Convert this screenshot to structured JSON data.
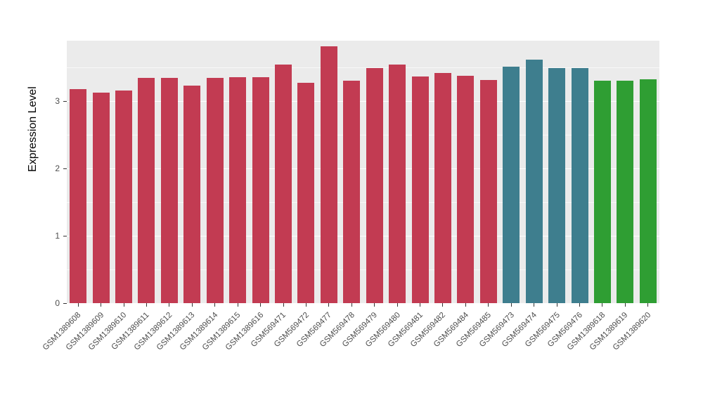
{
  "chart_data": {
    "type": "bar",
    "title": "",
    "xlabel": "",
    "ylabel": "Expression Level",
    "ylim": [
      0,
      3.9
    ],
    "yticks": [
      0,
      1,
      2,
      3
    ],
    "yminor": [
      0.5,
      1.5,
      2.5,
      3.5
    ],
    "grid": "on",
    "legend_position": "none",
    "panel_background": "#EBEBEB",
    "gridline_color": "#FFFFFF",
    "categories": [
      "GSM1389608",
      "GSM1389609",
      "GSM1389610",
      "GSM1389611",
      "GSM1389612",
      "GSM1389613",
      "GSM1389614",
      "GSM1389615",
      "GSM1389616",
      "GSM569471",
      "GSM569472",
      "GSM569477",
      "GSM569478",
      "GSM569479",
      "GSM569480",
      "GSM569481",
      "GSM569482",
      "GSM569484",
      "GSM569485",
      "GSM569473",
      "GSM569474",
      "GSM569475",
      "GSM569476",
      "GSM1389618",
      "GSM1389619",
      "GSM1389620"
    ],
    "values": [
      3.18,
      3.13,
      3.16,
      3.35,
      3.35,
      3.23,
      3.35,
      3.36,
      3.36,
      3.55,
      3.27,
      3.82,
      3.31,
      3.49,
      3.55,
      3.37,
      3.42,
      3.38,
      3.32,
      3.51,
      3.62,
      3.49,
      3.49,
      3.31,
      3.31,
      3.33
    ],
    "bar_groups": [
      "crimson",
      "crimson",
      "crimson",
      "crimson",
      "crimson",
      "crimson",
      "crimson",
      "crimson",
      "crimson",
      "crimson",
      "crimson",
      "crimson",
      "crimson",
      "crimson",
      "crimson",
      "crimson",
      "crimson",
      "crimson",
      "crimson",
      "teal",
      "teal",
      "teal",
      "teal",
      "green",
      "green",
      "green"
    ],
    "group_colors": {
      "crimson": "#C23B52",
      "teal": "#3E7E8E",
      "green": "#2F9E33"
    }
  }
}
